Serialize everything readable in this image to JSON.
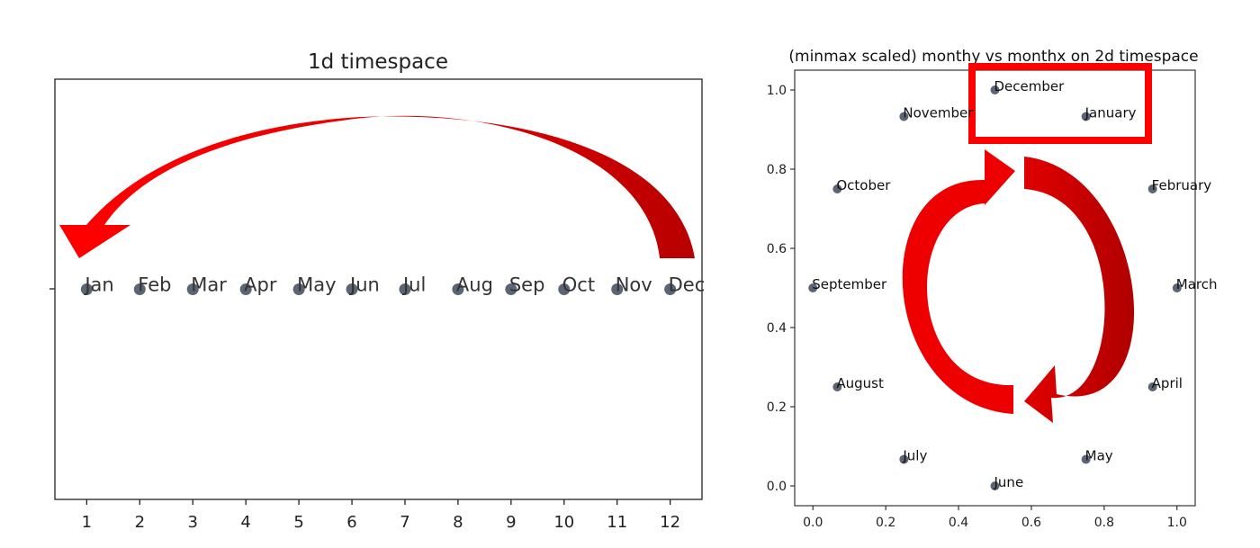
{
  "chart_data": [
    {
      "type": "scatter",
      "title": "1d timespace",
      "x": [
        1,
        2,
        3,
        4,
        5,
        6,
        7,
        8,
        9,
        10,
        11,
        12
      ],
      "y": [
        0,
        0,
        0,
        0,
        0,
        0,
        0,
        0,
        0,
        0,
        0,
        0
      ],
      "point_labels": [
        "Jan",
        "Feb",
        "Mar",
        "Apr",
        "May",
        "Jun",
        "Jul",
        "Aug",
        "Sep",
        "Oct",
        "Nov",
        "Dec"
      ],
      "xticks": [
        "1",
        "2",
        "3",
        "4",
        "5",
        "6",
        "7",
        "8",
        "9",
        "10",
        "11",
        "12"
      ],
      "xlim": [
        0.4,
        12.6
      ],
      "ylim": [
        -0.055,
        0.055
      ],
      "marker_color": "#5b6573",
      "annotation": "red curved arrow from Dec back to Jan"
    },
    {
      "type": "scatter",
      "title": "(minmax scaled) monthy vs monthx on 2d timespace",
      "x": [
        0.933,
        1.0,
        0.933,
        0.75,
        0.5,
        0.25,
        0.067,
        0.0,
        0.067,
        0.25,
        0.5,
        0.75
      ],
      "y": [
        0.75,
        0.5,
        0.25,
        0.067,
        0.0,
        0.067,
        0.25,
        0.5,
        0.75,
        0.933,
        1.0,
        0.933
      ],
      "point_labels": [
        "February",
        "March",
        "April",
        "May",
        "June",
        "July",
        "August",
        "September",
        "October",
        "November",
        "December",
        "January"
      ],
      "xticks": [
        "0.0",
        "0.2",
        "0.4",
        "0.6",
        "0.8",
        "1.0"
      ],
      "yticks": [
        "0.0",
        "0.2",
        "0.4",
        "0.6",
        "0.8",
        "1.0"
      ],
      "xlim": [
        -0.05,
        1.05
      ],
      "ylim": [
        -0.05,
        1.05
      ],
      "marker_color": "#5b6573",
      "annotation": "red box around December and January; red circular arrows"
    }
  ]
}
